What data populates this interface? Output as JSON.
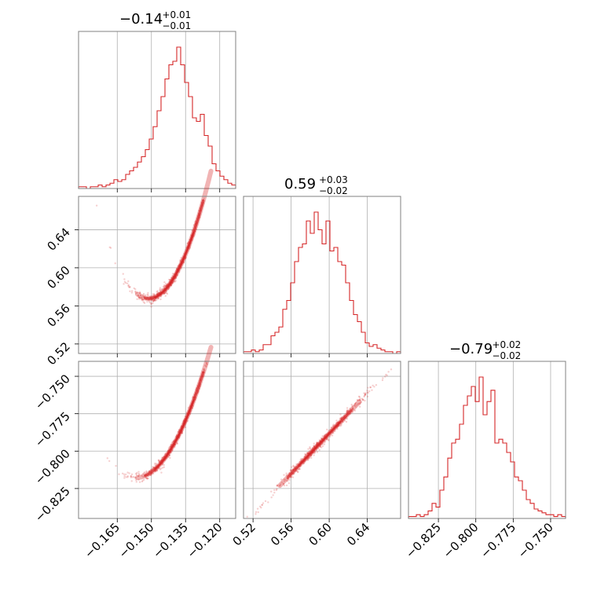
{
  "chart_data": {
    "type": "corner",
    "color": "#d62728",
    "parameters": [
      {
        "range": [
          -0.182,
          -0.113
        ],
        "ticks": [
          -0.165,
          -0.15,
          -0.135,
          -0.12
        ],
        "tick_labels": [
          "−0.165",
          "−0.150",
          "−0.135",
          "−0.120"
        ],
        "title": {
          "median": "−0.14",
          "plus": "+0.01",
          "minus": "−0.01"
        },
        "median": -0.14,
        "sigma": 0.0085,
        "histogram": [
          1,
          1,
          0,
          1,
          1,
          2,
          1,
          2,
          3,
          5,
          4,
          5,
          8,
          10,
          12,
          15,
          18,
          22,
          28,
          35,
          44,
          52,
          62,
          70,
          72,
          80,
          70,
          60,
          52,
          40,
          38,
          42,
          30,
          24,
          14,
          10,
          7,
          5,
          3,
          2
        ]
      },
      {
        "range": [
          0.51,
          0.675
        ],
        "ticks": [
          0.52,
          0.56,
          0.6,
          0.64
        ],
        "tick_labels": [
          "0.52",
          "0.56",
          "0.60",
          "0.64"
        ],
        "y_tick_labels": [
          "0.52",
          "0.56",
          "0.60",
          "0.64"
        ],
        "title": {
          "median": "0.59",
          "plus": "+0.03",
          "minus": "−0.02"
        },
        "median": 0.59,
        "sigma": 0.022,
        "histogram": [
          1,
          1,
          2,
          1,
          2,
          5,
          5,
          10,
          12,
          15,
          25,
          30,
          40,
          52,
          60,
          62,
          75,
          68,
          80,
          70,
          62,
          75,
          58,
          60,
          52,
          50,
          40,
          30,
          22,
          18,
          12,
          6,
          4,
          5,
          3,
          2,
          1,
          1,
          0,
          1
        ]
      },
      {
        "range": [
          -0.845,
          -0.74
        ],
        "ticks": [
          -0.825,
          -0.8,
          -0.775,
          -0.75
        ],
        "tick_labels": [
          "−0.825",
          "−0.800",
          "−0.775",
          "−0.750"
        ],
        "y_tick_labels": [
          "−0.750",
          "−0.775",
          "−0.800",
          "−0.825"
        ],
        "title": {
          "median": "−0.79",
          "plus": "+0.02",
          "minus": "−0.02"
        },
        "median": -0.795,
        "sigma": 0.014,
        "histogram": [
          1,
          1,
          2,
          1,
          2,
          4,
          8,
          6,
          15,
          22,
          32,
          40,
          42,
          50,
          60,
          65,
          70,
          62,
          75,
          55,
          62,
          68,
          40,
          42,
          40,
          35,
          30,
          22,
          20,
          15,
          10,
          8,
          5,
          4,
          3,
          2,
          2,
          1,
          2,
          1
        ]
      }
    ],
    "correlations": [
      {
        "row": 1,
        "col": 0,
        "slope": 4.0,
        "curve": 180
      },
      {
        "row": 2,
        "col": 0,
        "slope": 2.7,
        "curve": 80
      },
      {
        "row": 2,
        "col": 1,
        "slope": 0.67,
        "curve": 0
      }
    ],
    "grid": true,
    "xlabel": "",
    "ylabel": ""
  }
}
